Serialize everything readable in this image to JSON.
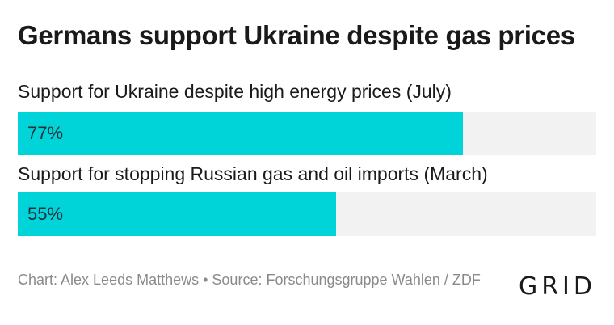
{
  "title": "Germans support Ukraine despite gas prices",
  "bars": [
    {
      "label": "Support for Ukraine despite high energy prices (July)",
      "value": 77,
      "display": "77%"
    },
    {
      "label": "Support for stopping Russian gas and oil imports (March)",
      "value": 55,
      "display": "55%"
    }
  ],
  "colors": {
    "fill": "#00d4d8",
    "track": "#f2f2f2"
  },
  "footer": "Chart: Alex Leeds Matthews • Source: Forschungsgruppe Wahlen / ZDF",
  "logo": "GRID",
  "chart_data": {
    "type": "bar",
    "orientation": "horizontal",
    "title": "Germans support Ukraine despite gas prices",
    "categories": [
      "Support for Ukraine despite high energy prices (July)",
      "Support for stopping Russian gas and oil imports (March)"
    ],
    "values": [
      77,
      55
    ],
    "unit": "%",
    "xlim": [
      0,
      100
    ],
    "grid": false
  }
}
